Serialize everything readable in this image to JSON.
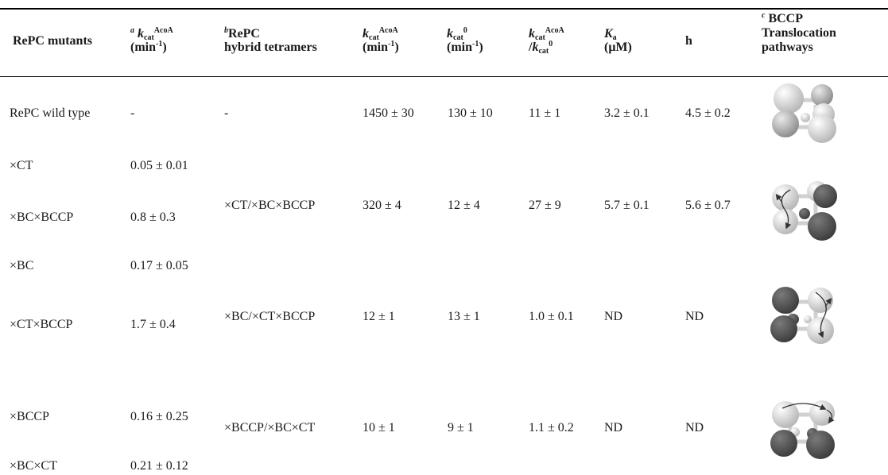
{
  "headers": {
    "mutants": "RePC mutants",
    "kcat_a_note": "a",
    "kcat_k": "k",
    "kcat_sub": "cat",
    "kcat_sup": "AcoA",
    "kcat_unit": "(min",
    "kcat_unit_exp": "-1",
    "kcat_unit_close": ")",
    "hybrid_note": "b",
    "hybrid_line1": "RePC",
    "hybrid_line2": "hybrid tetramers",
    "k2_k": "k",
    "k2_sub": "cat",
    "k2_sup": "AcoA",
    "k2_unit": "(min",
    "k2_unit_exp": "-1",
    "k2_unit_close": ")",
    "k0_k": "k",
    "k0_sub": "cat",
    "k0_sup": "0",
    "k0_unit": "(min",
    "k0_unit_exp": "-1",
    "k0_unit_close": ")",
    "ratio_k": "k",
    "ratio_sub": "cat",
    "ratio_sup": "AcoA",
    "ratio_slash": "/",
    "ratio_k2": "k",
    "ratio_sub2": "cat",
    "ratio_sup2": "0",
    "ka_k": "K",
    "ka_sub": "a",
    "ka_unit": "(μM)",
    "h": "h",
    "bccp_note": "c",
    "bccp_line1": "BCCP",
    "bccp_line2": "Translocation",
    "bccp_line3": "pathways"
  },
  "rows": [
    {
      "mutant": "RePC wild type",
      "kcat": "-",
      "hybrid": "-",
      "kcat2": "1450 ± 30",
      "k0": "130 ± 10",
      "ratio": "11 ± 1",
      "ka": "3.2 ± 0.1",
      "h": "4.5 ± 0.2"
    },
    {
      "mutant": "×CT",
      "kcat": "0.05 ± 0.01"
    },
    {
      "mutant": "×BC×BCCP",
      "kcat": "0.8 ± 0.3",
      "hybrid": "×CT/×BC×BCCP",
      "kcat2": "320 ± 4",
      "k0": "12 ± 4",
      "ratio": "27 ± 9",
      "ka": "5.7 ± 0.1",
      "h": "5.6 ± 0.7"
    },
    {
      "mutant": "×BC",
      "kcat": "0.17 ± 0.05"
    },
    {
      "mutant": "×CT×BCCP",
      "kcat": "1.7 ± 0.4",
      "hybrid": "×BC/×CT×BCCP",
      "kcat2": "12 ± 1",
      "k0": "13 ± 1",
      "ratio": "1.0 ± 0.1",
      "ka": "ND",
      "h": "ND"
    },
    {
      "mutant": "×BCCP",
      "kcat": "0.16 ± 0.25",
      "hybrid": "×BCCP/×BC×CT",
      "kcat2": "10 ± 1",
      "k0": "9 ± 1",
      "ratio": "1.1 ± 0.2",
      "ka": "ND",
      "h": "ND"
    },
    {
      "mutant": "×BC×CT",
      "kcat": "0.21 ± 0.12"
    }
  ]
}
